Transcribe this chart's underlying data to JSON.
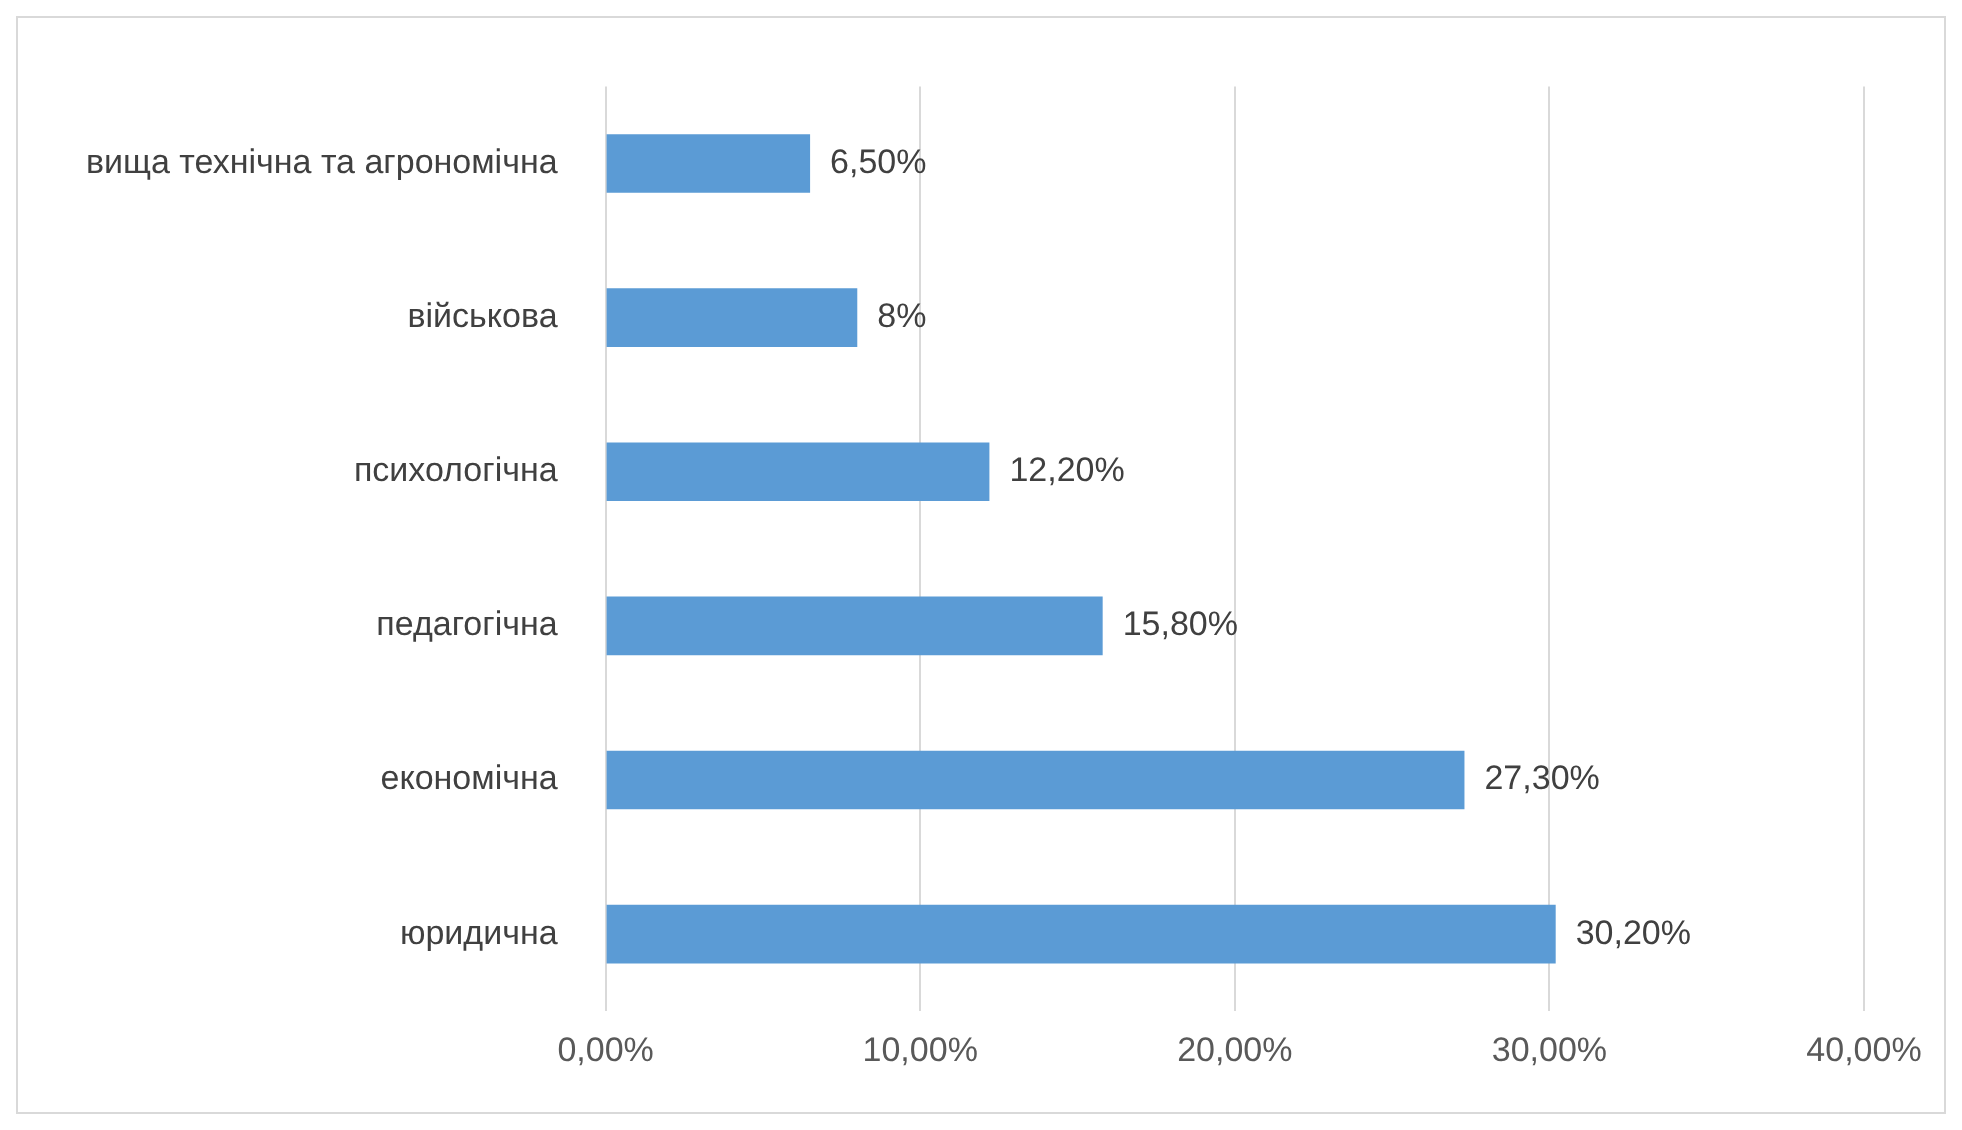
{
  "chart_data": {
    "type": "bar",
    "orientation": "horizontal",
    "categories": [
      "вища технічна та агрономічна",
      "військова",
      "психологічна",
      "педагогічна",
      "економічна",
      "юридична"
    ],
    "values": [
      6.5,
      8,
      12.2,
      15.8,
      27.3,
      30.2
    ],
    "value_labels": [
      "6,50%",
      "8%",
      "12,20%",
      "15,80%",
      "27,30%",
      "30,20%"
    ],
    "color": "#5b9bd5",
    "xlim": [
      0,
      40
    ],
    "xticks": [
      {
        "value": 0,
        "label": "0,00%"
      },
      {
        "value": 10,
        "label": "10,00%"
      },
      {
        "value": 20,
        "label": "20,00%"
      },
      {
        "value": 30,
        "label": "30,00%"
      },
      {
        "value": 40,
        "label": "40,00%"
      }
    ],
    "grid": "x"
  }
}
